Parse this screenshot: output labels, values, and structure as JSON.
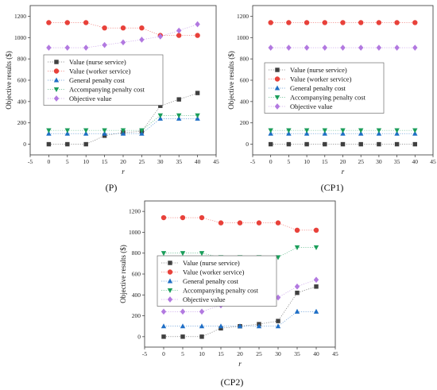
{
  "chart_data": [
    {
      "type": "scatter",
      "caption": "(P)",
      "xlabel": "r",
      "ylabel": "Objective results ($)",
      "xlim": [
        -5,
        45
      ],
      "ylim": [
        -100,
        1300
      ],
      "xticks": [
        -5,
        0,
        5,
        10,
        15,
        20,
        25,
        30,
        35,
        40,
        45
      ],
      "yticks": [
        0,
        200,
        400,
        600,
        800,
        1000,
        1200
      ],
      "legend": "middle-left",
      "x": [
        0,
        5,
        10,
        15,
        20,
        25,
        30,
        35,
        40
      ],
      "series": [
        {
          "name": "Value (nurse service)",
          "color": "#404040",
          "marker": "square",
          "values": [
            0,
            0,
            0,
            80,
            110,
            120,
            360,
            420,
            480
          ]
        },
        {
          "name": "Value (worker service)",
          "color": "#e8413a",
          "marker": "circle",
          "values": [
            1140,
            1140,
            1140,
            1090,
            1090,
            1090,
            1020,
            1020,
            1020
          ]
        },
        {
          "name": "General penalty cost",
          "color": "#1f6fc6",
          "marker": "triangle-up",
          "values": [
            100,
            100,
            100,
            100,
            100,
            100,
            240,
            240,
            240
          ]
        },
        {
          "name": "Accompanying penalty cost",
          "color": "#1a9e5a",
          "marker": "triangle-down",
          "values": [
            130,
            130,
            130,
            130,
            130,
            130,
            270,
            270,
            270
          ]
        },
        {
          "name": "Objective value",
          "color": "#b279e0",
          "marker": "diamond",
          "values": [
            905,
            905,
            905,
            930,
            955,
            980,
            1010,
            1065,
            1125
          ]
        }
      ]
    },
    {
      "type": "scatter",
      "caption": "(CP1)",
      "xlabel": "r",
      "ylabel": "Objective results ($)",
      "xlim": [
        -5,
        45
      ],
      "ylim": [
        -100,
        1300
      ],
      "xticks": [
        -5,
        0,
        5,
        10,
        15,
        20,
        25,
        30,
        35,
        40,
        45
      ],
      "yticks": [
        0,
        200,
        400,
        600,
        800,
        1000,
        1200
      ],
      "legend": "middle-left",
      "x": [
        0,
        5,
        10,
        15,
        20,
        25,
        30,
        35,
        40
      ],
      "series": [
        {
          "name": "Value (nurse service)",
          "color": "#404040",
          "marker": "square",
          "values": [
            0,
            0,
            0,
            0,
            0,
            0,
            0,
            0,
            0
          ]
        },
        {
          "name": "Value (worker service)",
          "color": "#e8413a",
          "marker": "circle",
          "values": [
            1140,
            1140,
            1140,
            1140,
            1140,
            1140,
            1140,
            1140,
            1140
          ]
        },
        {
          "name": "General penalty cost",
          "color": "#1f6fc6",
          "marker": "triangle-up",
          "values": [
            100,
            100,
            100,
            100,
            100,
            100,
            100,
            100,
            100
          ]
        },
        {
          "name": "Accompanying penalty cost",
          "color": "#1a9e5a",
          "marker": "triangle-down",
          "values": [
            130,
            130,
            130,
            130,
            130,
            130,
            130,
            130,
            130
          ]
        },
        {
          "name": "Objective value",
          "color": "#b279e0",
          "marker": "diamond",
          "values": [
            905,
            905,
            905,
            905,
            905,
            905,
            905,
            905,
            905
          ]
        }
      ]
    },
    {
      "type": "scatter",
      "caption": "(CP2)",
      "xlabel": "r",
      "ylabel": "Objective results ($)",
      "xlim": [
        -5,
        45
      ],
      "ylim": [
        -100,
        1300
      ],
      "xticks": [
        -5,
        0,
        5,
        10,
        15,
        20,
        25,
        30,
        35,
        40,
        45
      ],
      "yticks": [
        0,
        200,
        400,
        600,
        800,
        1000,
        1200
      ],
      "legend": "middle-left",
      "x": [
        0,
        5,
        10,
        15,
        20,
        25,
        30,
        35,
        40
      ],
      "series": [
        {
          "name": "Value (nurse service)",
          "color": "#404040",
          "marker": "square",
          "values": [
            0,
            0,
            0,
            80,
            100,
            120,
            150,
            420,
            480
          ]
        },
        {
          "name": "Value (worker service)",
          "color": "#e8413a",
          "marker": "circle",
          "values": [
            1140,
            1140,
            1140,
            1090,
            1090,
            1090,
            1090,
            1020,
            1020
          ]
        },
        {
          "name": "General penalty cost",
          "color": "#1f6fc6",
          "marker": "triangle-up",
          "values": [
            100,
            100,
            100,
            100,
            100,
            100,
            100,
            240,
            240
          ]
        },
        {
          "name": "Accompanying penalty cost",
          "color": "#1a9e5a",
          "marker": "triangle-down",
          "values": [
            800,
            800,
            800,
            760,
            760,
            760,
            760,
            855,
            855
          ]
        },
        {
          "name": "Objective value",
          "color": "#b279e0",
          "marker": "diamond",
          "values": [
            240,
            240,
            240,
            300,
            320,
            350,
            375,
            480,
            545
          ]
        }
      ]
    }
  ]
}
